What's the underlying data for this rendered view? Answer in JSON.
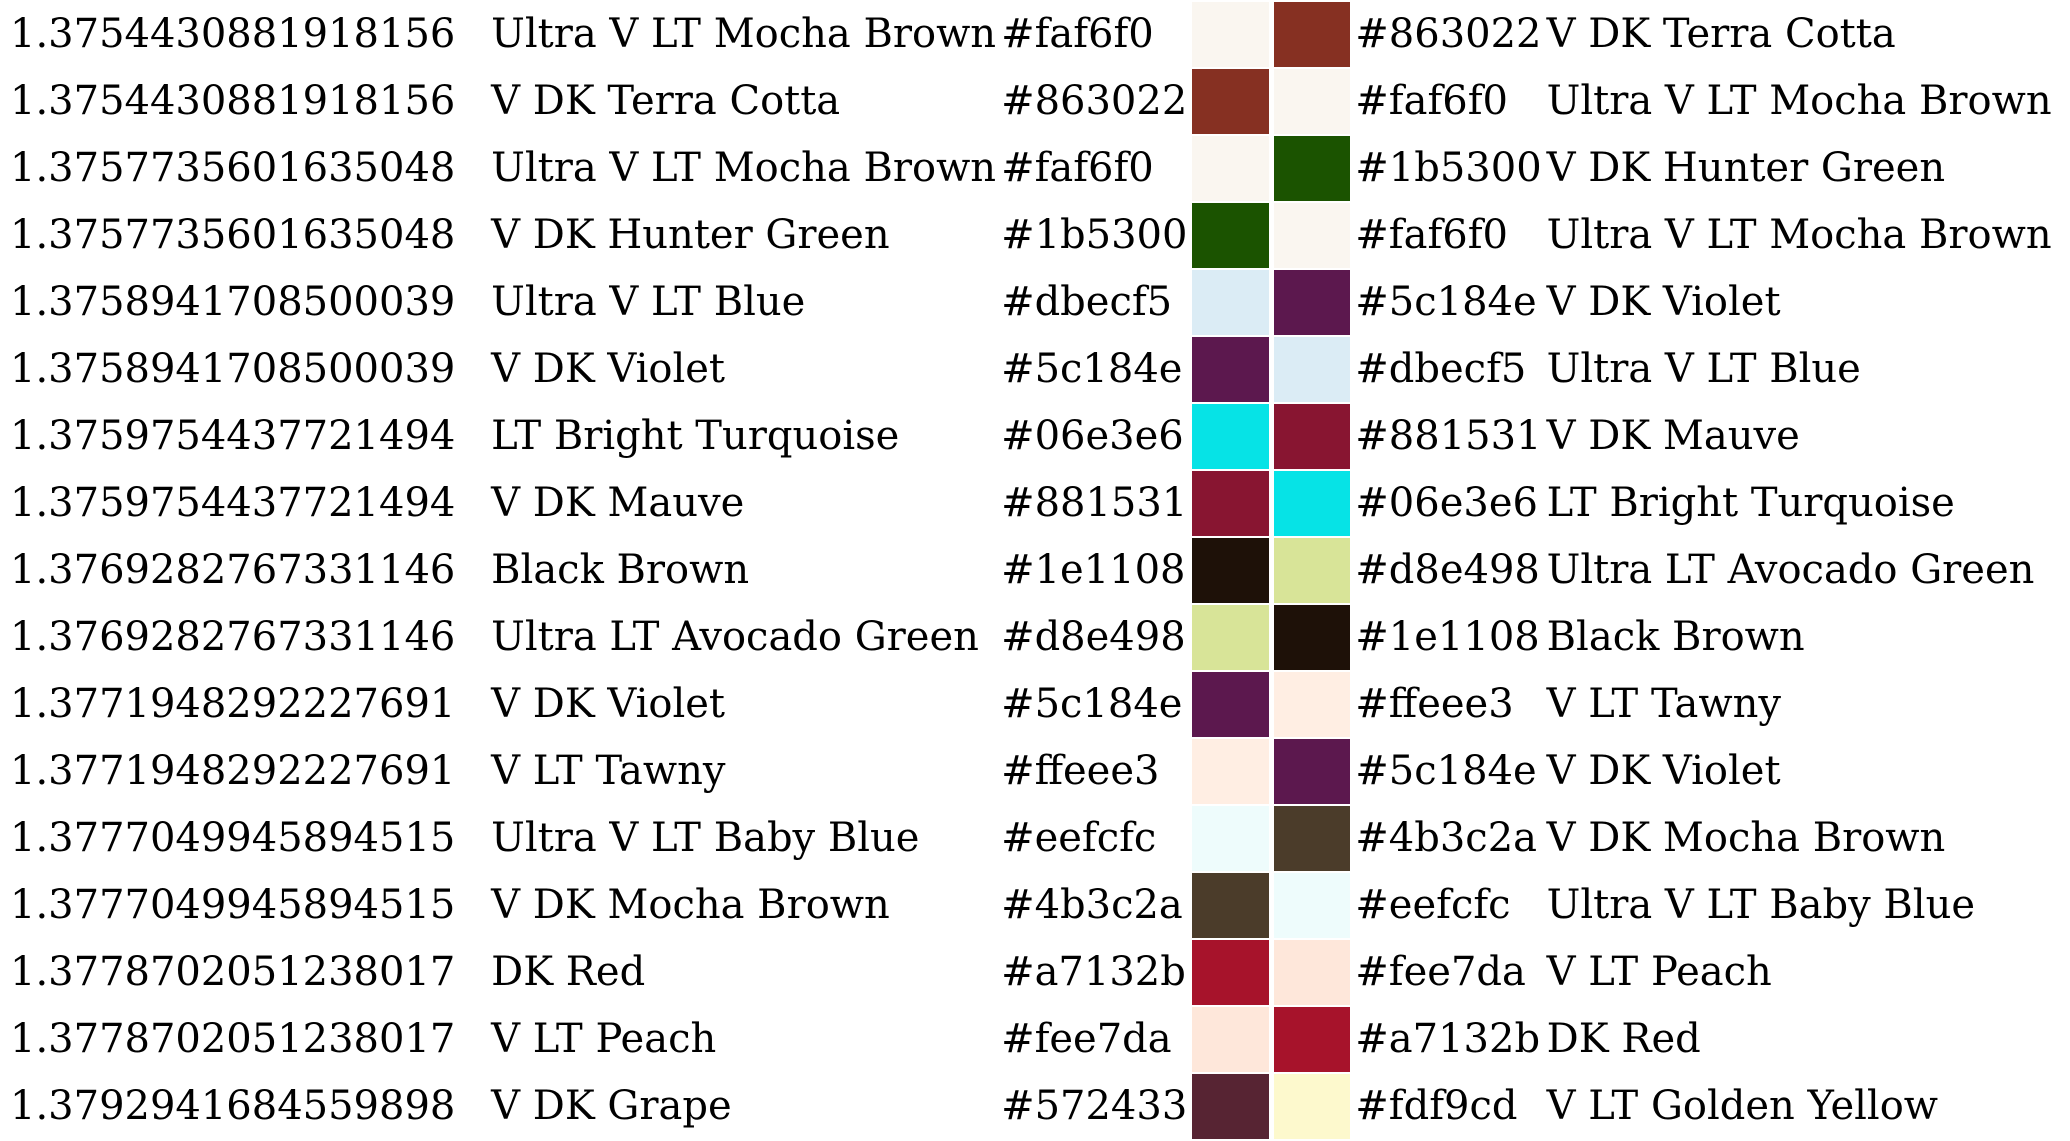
{
  "colors": {
    "faf6f0": "#faf6f0",
    "863022": "#863022",
    "1b5300": "#1b5300",
    "dbecf5": "#dbecf5",
    "5c184e": "#5c184e",
    "06e3e6": "#06e3e6",
    "881531": "#881531",
    "1e1108": "#1e1108",
    "d8e498": "#d8e498",
    "ffeee3": "#ffeee3",
    "eefcfc": "#eefcfc",
    "4b3c2a": "#4b3c2a",
    "a7132b": "#a7132b",
    "fee7da": "#fee7da",
    "572433": "#572433",
    "fdf9cd": "#fdf9cd"
  },
  "rows": [
    {
      "distance": "1.3754430881918156",
      "name": "Ultra V LT Mocha Brown",
      "hex": "#faf6f0",
      "color": "#faf6f0",
      "match_color": "#863022",
      "match_hex": "#863022",
      "match_name": "V DK Terra Cotta"
    },
    {
      "distance": "1.3754430881918156",
      "name": "V DK Terra Cotta",
      "hex": "#863022",
      "color": "#863022",
      "match_color": "#faf6f0",
      "match_hex": "#faf6f0",
      "match_name": "Ultra V LT Mocha Brown"
    },
    {
      "distance": "1.3757735601635048",
      "name": "Ultra V LT Mocha Brown",
      "hex": "#faf6f0",
      "color": "#faf6f0",
      "match_color": "#1b5300",
      "match_hex": "#1b5300",
      "match_name": "V DK Hunter Green"
    },
    {
      "distance": "1.3757735601635048",
      "name": "V DK Hunter Green",
      "hex": "#1b5300",
      "color": "#1b5300",
      "match_color": "#faf6f0",
      "match_hex": "#faf6f0",
      "match_name": "Ultra V LT Mocha Brown"
    },
    {
      "distance": "1.3758941708500039",
      "name": "Ultra V LT Blue",
      "hex": "#dbecf5",
      "color": "#dbecf5",
      "match_color": "#5c184e",
      "match_hex": "#5c184e",
      "match_name": "V DK Violet"
    },
    {
      "distance": "1.3758941708500039",
      "name": "V DK Violet",
      "hex": "#5c184e",
      "color": "#5c184e",
      "match_color": "#dbecf5",
      "match_hex": "#dbecf5",
      "match_name": "Ultra V LT Blue"
    },
    {
      "distance": "1.3759754437721494",
      "name": "LT Bright Turquoise",
      "hex": "#06e3e6",
      "color": "#06e3e6",
      "match_color": "#881531",
      "match_hex": "#881531",
      "match_name": "V DK Mauve"
    },
    {
      "distance": "1.3759754437721494",
      "name": "V DK Mauve",
      "hex": "#881531",
      "color": "#881531",
      "match_color": "#06e3e6",
      "match_hex": "#06e3e6",
      "match_name": "LT Bright Turquoise"
    },
    {
      "distance": "1.3769282767331146",
      "name": "Black Brown",
      "hex": "#1e1108",
      "color": "#1e1108",
      "match_color": "#d8e498",
      "match_hex": "#d8e498",
      "match_name": "Ultra LT Avocado Green"
    },
    {
      "distance": "1.3769282767331146",
      "name": "Ultra LT Avocado Green",
      "hex": "#d8e498",
      "color": "#d8e498",
      "match_color": "#1e1108",
      "match_hex": "#1e1108",
      "match_name": "Black Brown"
    },
    {
      "distance": "1.3771948292227691",
      "name": "V DK Violet",
      "hex": "#5c184e",
      "color": "#5c184e",
      "match_color": "#ffeee3",
      "match_hex": "#ffeee3",
      "match_name": "V LT Tawny"
    },
    {
      "distance": "1.3771948292227691",
      "name": "V LT Tawny",
      "hex": "#ffeee3",
      "color": "#ffeee3",
      "match_color": "#5c184e",
      "match_hex": "#5c184e",
      "match_name": "V DK Violet"
    },
    {
      "distance": "1.3777049945894515",
      "name": "Ultra V LT Baby Blue",
      "hex": "#eefcfc",
      "color": "#eefcfc",
      "match_color": "#4b3c2a",
      "match_hex": "#4b3c2a",
      "match_name": "V DK Mocha Brown"
    },
    {
      "distance": "1.3777049945894515",
      "name": "V DK Mocha Brown",
      "hex": "#4b3c2a",
      "color": "#4b3c2a",
      "match_color": "#eefcfc",
      "match_hex": "#eefcfc",
      "match_name": "Ultra V LT Baby Blue"
    },
    {
      "distance": "1.3778702051238017",
      "name": "DK Red",
      "hex": "#a7132b",
      "color": "#a7132b",
      "match_color": "#fee7da",
      "match_hex": "#fee7da",
      "match_name": "V LT Peach"
    },
    {
      "distance": "1.3778702051238017",
      "name": "V LT Peach",
      "hex": "#fee7da",
      "color": "#fee7da",
      "match_color": "#a7132b",
      "match_hex": "#a7132b",
      "match_name": "DK Red"
    },
    {
      "distance": "1.3792941684559898",
      "name": "V DK Grape",
      "hex": "#572433",
      "color": "#572433",
      "match_color": "#fdf9cd",
      "match_hex": "#fdf9cd",
      "match_name": "V LT Golden Yellow"
    }
  ]
}
